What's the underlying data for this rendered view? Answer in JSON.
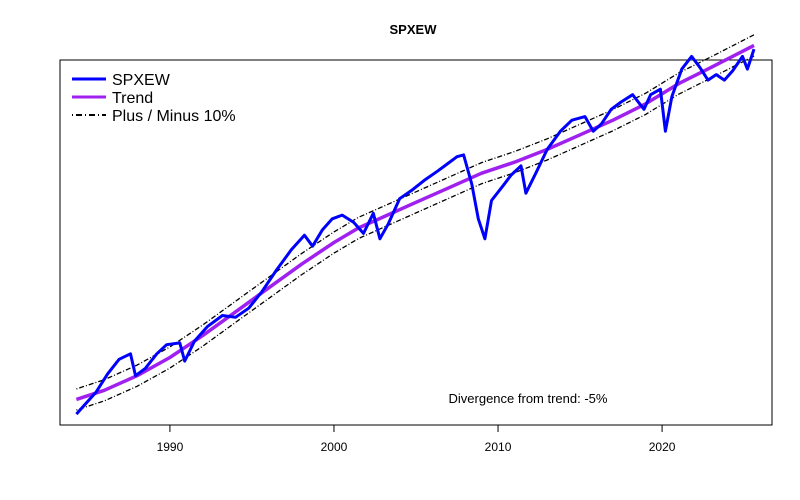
{
  "chart_data": {
    "type": "line",
    "title": "SPXEW",
    "xlabel": "",
    "ylabel": "",
    "xlim": [
      1983.3,
      2026.7
    ],
    "ylim": [
      0,
      100
    ],
    "x_ticks": [
      1990,
      2000,
      2010,
      2020
    ],
    "x_tick_labels": [
      "1990",
      "2000",
      "2010",
      "2020"
    ],
    "y_axis_labels_shown": false,
    "grid": false,
    "legend_position": "top-left",
    "annotation": "Divergence from trend: -5%",
    "series": [
      {
        "name": "SPXEW",
        "color": "#0000ff",
        "style": "solid",
        "x": [
          1984.3,
          1984.8,
          1985.5,
          1986.2,
          1986.9,
          1987.6,
          1987.9,
          1988.5,
          1989.2,
          1989.8,
          1990.6,
          1990.9,
          1991.5,
          1992.3,
          1993.2,
          1994.0,
          1994.8,
          1995.6,
          1996.5,
          1997.4,
          1998.2,
          1998.7,
          1999.3,
          1999.9,
          2000.5,
          2001.2,
          2001.8,
          2002.4,
          2002.8,
          2003.3,
          2004.0,
          2004.8,
          2005.5,
          2006.3,
          2006.9,
          2007.5,
          2007.9,
          2008.4,
          2008.8,
          2009.2,
          2009.6,
          2010.3,
          2010.8,
          2011.4,
          2011.7,
          2012.3,
          2013.0,
          2013.8,
          2014.5,
          2015.3,
          2015.8,
          2016.3,
          2016.9,
          2017.5,
          2018.2,
          2018.9,
          2019.3,
          2019.9,
          2020.2,
          2020.6,
          2021.2,
          2021.8,
          2022.3,
          2022.8,
          2023.3,
          2023.8,
          2024.3,
          2024.9,
          2025.2,
          2025.6
        ],
        "y": [
          3.0,
          5.5,
          9.0,
          14.0,
          18.0,
          19.5,
          13.5,
          15.5,
          19.5,
          22.0,
          22.5,
          17.5,
          23.0,
          27.0,
          30.0,
          29.5,
          32.0,
          36.5,
          42.5,
          48.0,
          52.0,
          49.0,
          53.5,
          56.5,
          57.5,
          55.5,
          52.5,
          58.0,
          51.0,
          55.0,
          62.0,
          64.5,
          67.0,
          69.5,
          71.5,
          73.5,
          74.0,
          66.0,
          56.5,
          51.0,
          61.5,
          65.5,
          68.5,
          71.0,
          63.5,
          69.0,
          75.5,
          80.5,
          83.5,
          84.5,
          80.5,
          82.5,
          86.5,
          88.5,
          90.5,
          86.5,
          90.5,
          92.0,
          80.5,
          90.0,
          97.5,
          101.0,
          98.0,
          94.5,
          96.0,
          94.5,
          97.0,
          101.0,
          97.5,
          103.0
        ]
      },
      {
        "name": "Trend",
        "color": "#a020f0",
        "style": "solid",
        "x": [
          1984.3,
          1986.0,
          1988.0,
          1990.0,
          1992.0,
          1994.0,
          1996.0,
          1998.0,
          2000.0,
          2001.5,
          2003.0,
          2005.0,
          2007.0,
          2009.0,
          2011.0,
          2013.0,
          2015.0,
          2017.0,
          2019.0,
          2021.0,
          2023.0,
          2025.6
        ],
        "y": [
          7.0,
          9.5,
          13.5,
          18.5,
          24.5,
          31.0,
          37.5,
          44.0,
          50.0,
          54.0,
          57.0,
          61.0,
          65.0,
          69.0,
          72.0,
          75.5,
          79.5,
          83.5,
          88.0,
          93.5,
          98.0,
          104.0
        ]
      },
      {
        "name": "Plus / Minus 10%",
        "color": "#000000",
        "style": "dotdash",
        "x": [
          1984.3,
          1986.0,
          1988.0,
          1990.0,
          1992.0,
          1994.0,
          1996.0,
          1998.0,
          2000.0,
          2001.5,
          2003.0,
          2005.0,
          2007.0,
          2009.0,
          2011.0,
          2013.0,
          2015.0,
          2017.0,
          2019.0,
          2021.0,
          2023.0,
          2025.6
        ],
        "y": [
          9.9,
          12.4,
          16.4,
          21.4,
          27.4,
          33.9,
          40.4,
          46.9,
          52.9,
          56.9,
          59.9,
          63.9,
          67.9,
          71.9,
          74.9,
          78.4,
          82.4,
          86.4,
          90.9,
          96.4,
          100.9,
          106.9
        ]
      },
      {
        "name": "",
        "color": "#000000",
        "style": "dotdash",
        "x": [
          1984.3,
          1986.0,
          1988.0,
          1990.0,
          1992.0,
          1994.0,
          1996.0,
          1998.0,
          2000.0,
          2001.5,
          2003.0,
          2005.0,
          2007.0,
          2009.0,
          2011.0,
          2013.0,
          2015.0,
          2017.0,
          2019.0,
          2021.0,
          2023.0,
          2025.6
        ],
        "y": [
          4.1,
          6.6,
          10.6,
          15.6,
          21.6,
          28.1,
          34.6,
          41.1,
          47.1,
          51.1,
          54.1,
          58.1,
          62.1,
          66.1,
          69.1,
          72.6,
          76.6,
          80.6,
          85.1,
          90.6,
          95.1,
          101.1
        ]
      }
    ]
  }
}
